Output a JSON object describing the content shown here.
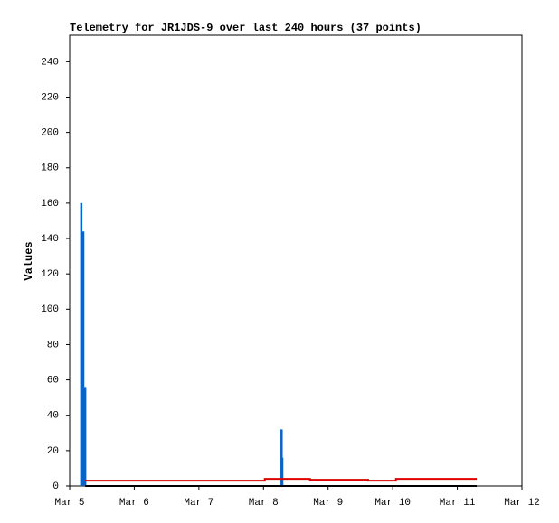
{
  "chart_data": {
    "type": "line",
    "title": "Telemetry for JR1JDS-9 over last 240 hours (37 points)",
    "y_label": "Values",
    "xlim": [
      5,
      12
    ],
    "xticks": [
      {
        "value": 5,
        "label": "Mar 5"
      },
      {
        "value": 6,
        "label": "Mar 6"
      },
      {
        "value": 7,
        "label": "Mar 7"
      },
      {
        "value": 8,
        "label": "Mar 8"
      },
      {
        "value": 9,
        "label": "Mar 9"
      },
      {
        "value": 10,
        "label": "Mar 10"
      },
      {
        "value": 11,
        "label": "Mar 11"
      },
      {
        "value": 12,
        "label": "Mar 12"
      }
    ],
    "ylim": [
      0,
      255
    ],
    "yticks": [
      0,
      20,
      40,
      60,
      80,
      100,
      120,
      140,
      160,
      180,
      200,
      220,
      240
    ],
    "grid": false,
    "series": [
      {
        "style": "impulse",
        "color": "#0b63c4",
        "x": [
          5.18,
          5.21,
          5.24,
          8.28,
          8.29
        ],
        "values": [
          160,
          144,
          56,
          32,
          16
        ]
      },
      {
        "style": "line",
        "color": "#dd0000",
        "x": [
          5.24,
          8.02,
          8.02,
          8.72,
          8.72,
          9.62,
          9.62,
          10.05,
          10.05,
          11.3
        ],
        "values": [
          3,
          3,
          4,
          4,
          3.5,
          3.5,
          3,
          3,
          4,
          4
        ]
      },
      {
        "style": "line",
        "color": "#000000",
        "x": [
          5.24,
          11.3
        ],
        "values": [
          0,
          0
        ]
      }
    ]
  }
}
